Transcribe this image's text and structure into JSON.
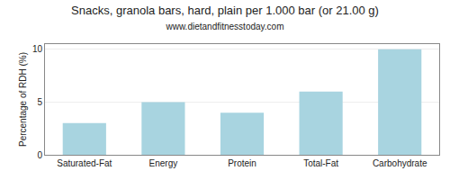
{
  "chart_data": {
    "type": "bar",
    "title": "Snacks, granola bars, hard, plain per 1.000 bar (or 21.00 g)",
    "subtitle": "www.dietandfitnesstoday.com",
    "ylabel": "Percentage of RDH (%)",
    "categories": [
      "Saturated-Fat",
      "Energy",
      "Protein",
      "Total-Fat",
      "Carbohydrate"
    ],
    "values": [
      3.0,
      5.0,
      4.0,
      6.0,
      10.0
    ],
    "color": "#a8d4e0",
    "ylim": [
      0,
      10.5
    ],
    "yticks": [
      0,
      5,
      10
    ],
    "grid": true
  }
}
